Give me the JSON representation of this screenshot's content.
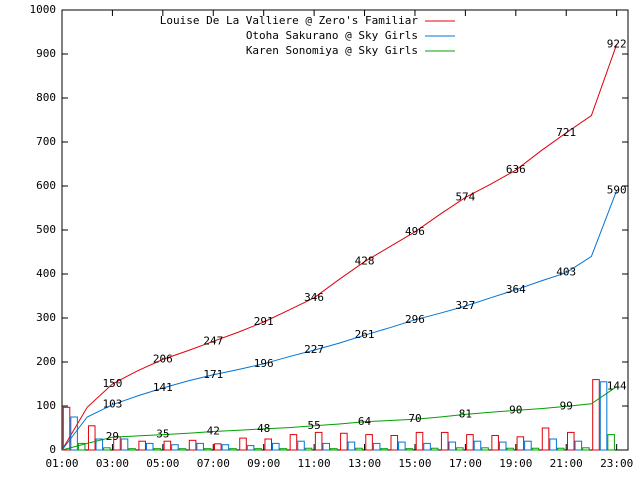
{
  "chart_data": {
    "type": "line",
    "x": [
      "01:00",
      "02:00",
      "03:00",
      "04:00",
      "05:00",
      "06:00",
      "07:00",
      "08:00",
      "09:00",
      "10:00",
      "11:00",
      "12:00",
      "13:00",
      "14:00",
      "15:00",
      "16:00",
      "17:00",
      "18:00",
      "19:00",
      "20:00",
      "21:00",
      "22:00",
      "23:00"
    ],
    "series": [
      {
        "name": "Louise De La Valliere @ Zero's Familiar",
        "color": "#e0000a",
        "values": [
          0,
          97,
          150,
          180,
          206,
          226,
          247,
          268,
          291,
          318,
          346,
          388,
          428,
          462,
          496,
          536,
          574,
          604,
          636,
          680,
          721,
          760,
          922
        ],
        "hourly": [
          97,
          55,
          30,
          20,
          20,
          22,
          14,
          27,
          25,
          35,
          40,
          38,
          35,
          33,
          40,
          40,
          35,
          33,
          30,
          50,
          40,
          160
        ]
      },
      {
        "name": "Otoha Sakurano @ Sky Girls",
        "color": "#0074d9",
        "values": [
          0,
          75,
          103,
          123,
          141,
          157,
          171,
          183,
          196,
          212,
          227,
          243,
          261,
          278,
          296,
          311,
          327,
          346,
          364,
          384,
          403,
          440,
          590
        ],
        "hourly": [
          75,
          25,
          25,
          15,
          12,
          15,
          12,
          10,
          15,
          20,
          15,
          18,
          15,
          18,
          15,
          18,
          20,
          18,
          20,
          25,
          20,
          155
        ]
      },
      {
        "name": "Karen Sonomiya @ Sky Girls",
        "color": "#00a000",
        "values": [
          0,
          15,
          29,
          32,
          35,
          38,
          42,
          45,
          48,
          51,
          55,
          59,
          64,
          67,
          70,
          75,
          81,
          86,
          90,
          94,
          99,
          105,
          144
        ],
        "hourly": [
          15,
          5,
          3,
          3,
          3,
          3,
          3,
          3,
          3,
          4,
          3,
          4,
          3,
          3,
          4,
          5,
          5,
          4,
          4,
          4,
          5,
          35
        ]
      }
    ],
    "xlim": [
      "01:00",
      "23:27"
    ],
    "xticks": [
      "01:00",
      "03:00",
      "05:00",
      "07:00",
      "09:00",
      "11:00",
      "13:00",
      "15:00",
      "17:00",
      "19:00",
      "21:00",
      "23:00"
    ],
    "ylim": [
      0,
      1000
    ],
    "yticks": [
      0,
      100,
      200,
      300,
      400,
      500,
      600,
      700,
      800,
      900,
      1000
    ],
    "legend": "top-left"
  }
}
